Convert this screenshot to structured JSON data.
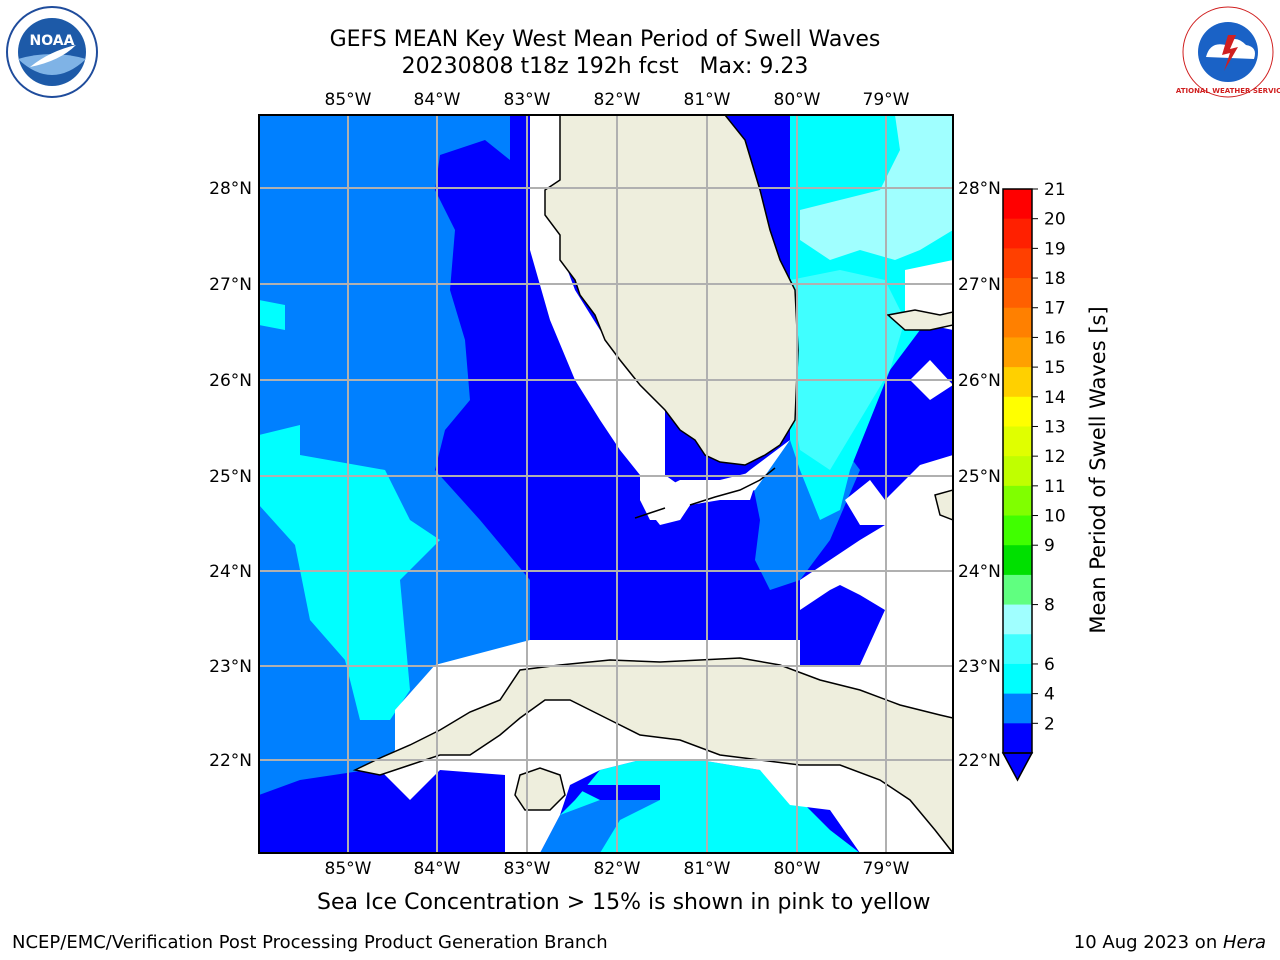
{
  "header": {
    "title_line1": "GEFS MEAN Key West Mean Period of Swell Waves",
    "title_line2": "20230808 t18z 192h fcst   Max: 9.23"
  },
  "logos": {
    "left": "NOAA",
    "right": "NATIONAL WEATHER SERVICE"
  },
  "map": {
    "lon_labels": [
      "85°W",
      "84°W",
      "83°W",
      "82°W",
      "81°W",
      "80°W",
      "79°W"
    ],
    "lat_labels": [
      "28°N",
      "27°N",
      "26°N",
      "25°N",
      "24°N",
      "23°N",
      "22°N"
    ],
    "colors": {
      "land": "#eeeedd",
      "no_data": "#ffffff",
      "band_2_4": "#0000ff",
      "band_4_6": "#0080ff",
      "band_6_7": "#00ffff",
      "band_7_8": "#40ffff",
      "band_8_9": "#a0ffff",
      "grid": "#b0b0b0"
    }
  },
  "colorbar": {
    "label": "Mean Period of Swell Waves [s]",
    "ticks": [
      "21",
      "20",
      "19",
      "18",
      "17",
      "16",
      "15",
      "14",
      "13",
      "12",
      "11",
      "10",
      "9",
      "8",
      "6",
      "4",
      "2"
    ],
    "colors": [
      "#ff0000",
      "#ff2000",
      "#ff4000",
      "#ff6000",
      "#ff8000",
      "#ffa000",
      "#ffd000",
      "#ffff00",
      "#e0ff00",
      "#c0ff00",
      "#80ff00",
      "#40ff00",
      "#00e000",
      "#60ff80",
      "#a0ffff",
      "#40ffff",
      "#00ffff",
      "#0080ff",
      "#0000ff"
    ]
  },
  "caption": "Sea Ice Concentration > 15% is shown in pink to yellow",
  "footer": {
    "left": "NCEP/EMC/Verification Post Processing Product Generation Branch",
    "right_prefix": "10 Aug 2023 on ",
    "right_host": "Hera"
  }
}
